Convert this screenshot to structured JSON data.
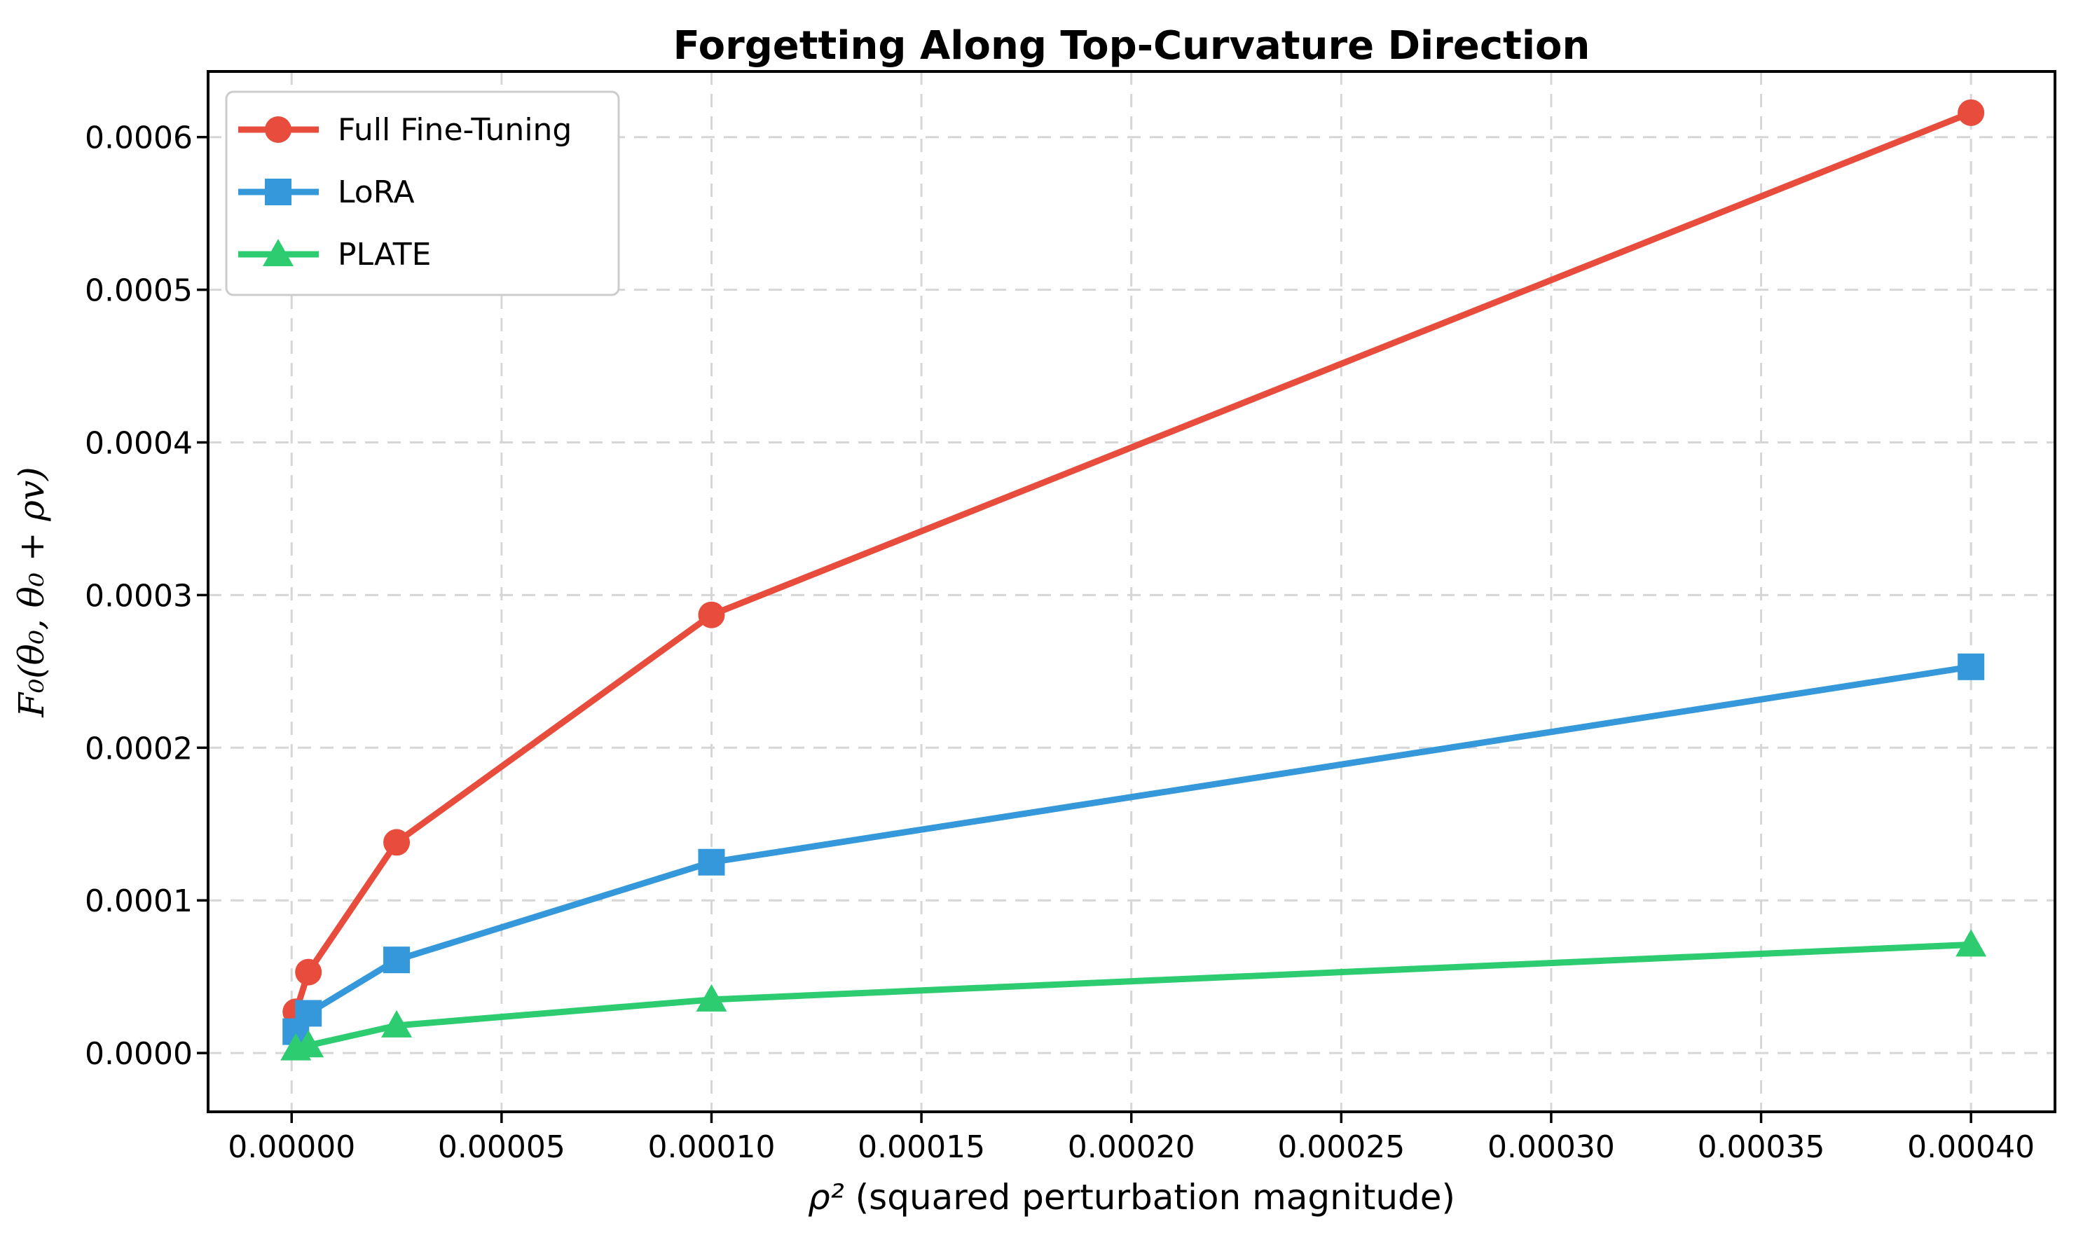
{
  "chart_data": {
    "type": "line",
    "title": "Forgetting Along Top-Curvature Direction",
    "xlabel": "ρ² (squared perturbation magnitude)",
    "xlabel_math": "ρ²",
    "xlabel_rest": " (squared perturbation magnitude)",
    "ylabel": "F₀(θ₀, θ₀ + ρv)",
    "x": [
      1e-06,
      4e-06,
      2.5e-05,
      0.0001,
      0.0004
    ],
    "series": [
      {
        "name": "Full Fine-Tuning",
        "marker": "circle",
        "color": "#e74c3c",
        "values": [
          2.7e-05,
          5.3e-05,
          0.000138,
          0.000287,
          0.000616
        ]
      },
      {
        "name": "LoRA",
        "marker": "square",
        "color": "#3498db",
        "values": [
          1.4e-05,
          2.6e-05,
          6.1e-05,
          0.000125,
          0.000253
        ]
      },
      {
        "name": "PLATE",
        "marker": "triangle",
        "color": "#2ecc71",
        "values": [
          3e-06,
          5e-06,
          1.8e-05,
          3.5e-05,
          7.1e-05
        ]
      }
    ],
    "xticks": {
      "values": [
        0.0,
        5e-05,
        0.0001,
        0.00015,
        0.0002,
        0.00025,
        0.0003,
        0.00035,
        0.0004
      ],
      "labels": [
        "0.00000",
        "0.00005",
        "0.00010",
        "0.00015",
        "0.00020",
        "0.00025",
        "0.00030",
        "0.00035",
        "0.00040"
      ]
    },
    "yticks": {
      "values": [
        0.0,
        0.0001,
        0.0002,
        0.0003,
        0.0004,
        0.0005,
        0.0006
      ],
      "labels": [
        "0.0000",
        "0.0001",
        "0.0002",
        "0.0003",
        "0.0004",
        "0.0005",
        "0.0006"
      ]
    },
    "xlim": [
      -1.99e-05,
      0.00042
    ],
    "ylim": [
      -3.85e-05,
      0.000643
    ],
    "grid": true,
    "grid_style": "dashed",
    "legend_position": "upper-left"
  }
}
